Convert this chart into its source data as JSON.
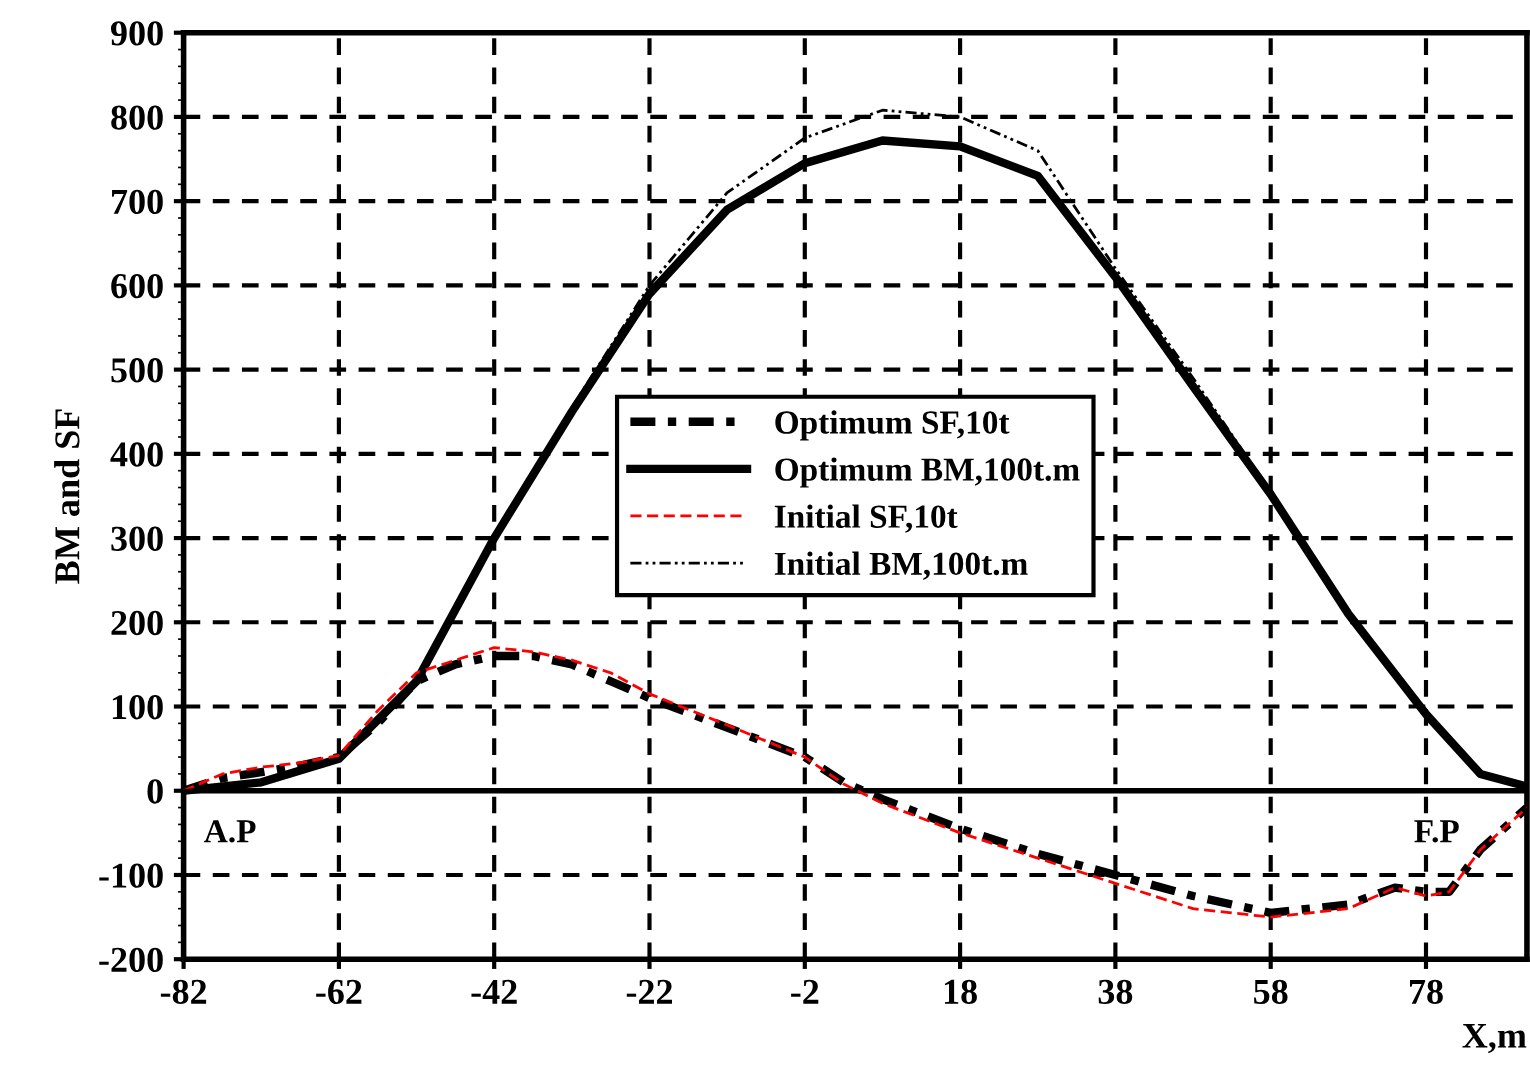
{
  "chart_data": {
    "type": "line",
    "xlabel": "X,m",
    "ylabel": "BM and SF",
    "xlim": [
      -82,
      91
    ],
    "xticks": [
      -82,
      -62,
      -42,
      -22,
      -2,
      18,
      38,
      58,
      78
    ],
    "ylim": [
      -200,
      900
    ],
    "yticks": [
      -200,
      -100,
      0,
      100,
      200,
      300,
      400,
      500,
      600,
      700,
      800,
      900
    ],
    "grid": true,
    "legend": "center",
    "ref_lines": [
      {
        "axis": "y",
        "value": 0,
        "color": "#000000",
        "line_style": "solid"
      }
    ],
    "annotations": [
      "A.P",
      "F.P"
    ],
    "series": [
      {
        "name": "Optimum SF,10t",
        "color": "#000000",
        "line_style": "dashdot",
        "x": [
          -82,
          -77,
          -72,
          -67,
          -62,
          -57,
          -52,
          -47,
          -42,
          -37,
          -32,
          -27,
          -22,
          -12,
          -2,
          3,
          8,
          18,
          28,
          38,
          48,
          58,
          68,
          74,
          78,
          81,
          85,
          91
        ],
        "values": [
          0,
          15,
          22,
          30,
          40,
          80,
          130,
          150,
          160,
          160,
          150,
          130,
          110,
          75,
          40,
          10,
          -10,
          -45,
          -75,
          -100,
          -125,
          -145,
          -135,
          -115,
          -120,
          -120,
          -70,
          -20
        ]
      },
      {
        "name": "Optimum BM,100t.m",
        "color": "#000000",
        "line_style": "solid",
        "x": [
          -82,
          -72,
          -62,
          -52,
          -42,
          -32,
          -22,
          -12,
          -2,
          8,
          18,
          28,
          38,
          48,
          58,
          68,
          78,
          85,
          91
        ],
        "values": [
          0,
          10,
          38,
          130,
          300,
          450,
          590,
          690,
          745,
          772,
          765,
          730,
          610,
          480,
          352,
          210,
          91,
          20,
          5
        ]
      },
      {
        "name": "Initial SF,10t",
        "color": "#ff0000",
        "line_style": "dashed",
        "x": [
          -82,
          -77,
          -72,
          -67,
          -62,
          -57,
          -52,
          -47,
          -42,
          -37,
          -32,
          -27,
          -22,
          -12,
          -2,
          3,
          8,
          18,
          28,
          38,
          48,
          58,
          68,
          74,
          78,
          81,
          85,
          91
        ],
        "values": [
          0,
          20,
          28,
          33,
          42,
          95,
          140,
          155,
          170,
          165,
          155,
          140,
          115,
          78,
          40,
          8,
          -15,
          -50,
          -80,
          -110,
          -140,
          -150,
          -140,
          -115,
          -125,
          -120,
          -70,
          -20
        ]
      },
      {
        "name": "Initial BM,100t.m",
        "color": "#000000",
        "line_style": "dashdotdot",
        "x": [
          -82,
          -72,
          -62,
          -52,
          -42,
          -32,
          -22,
          -12,
          -2,
          8,
          18,
          28,
          38,
          48,
          58,
          68,
          78,
          85,
          91
        ],
        "values": [
          0,
          10,
          38,
          130,
          300,
          455,
          600,
          710,
          775,
          808,
          800,
          760,
          620,
          490,
          355,
          212,
          92,
          20,
          5
        ]
      }
    ]
  }
}
